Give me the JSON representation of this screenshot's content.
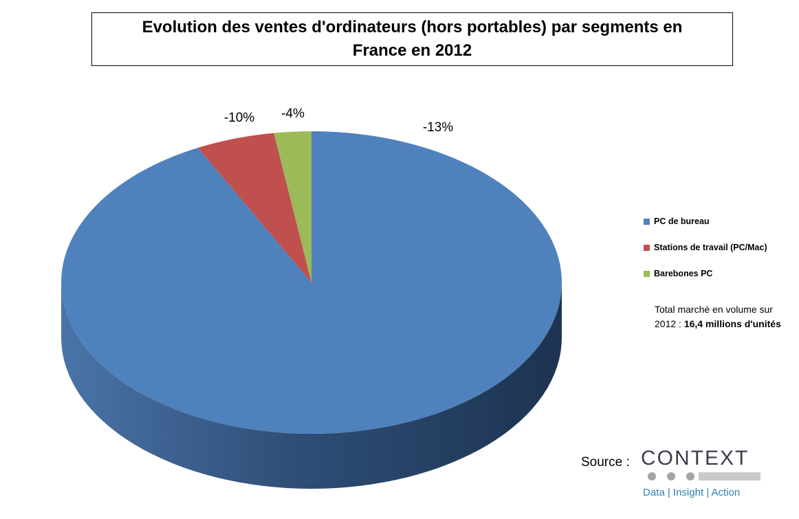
{
  "chart_data": {
    "type": "pie",
    "title": "Evolution des ventes d'ordinateurs (hors portables) par segments en France en 2012",
    "slices": [
      {
        "name": "PC de bureau",
        "share": 92.5,
        "label": "-13%",
        "color": "#4f81bd"
      },
      {
        "name": "Stations de travail (PC/Mac)",
        "share": 5.1,
        "label": "-10%",
        "color": "#c0504d"
      },
      {
        "name": "Barebones PC",
        "share": 2.4,
        "label": "-4%",
        "color": "#9bbb59"
      }
    ],
    "legend_position": "right",
    "three_d": true
  },
  "note": {
    "text": "Total marché en volume sur 2012 : ",
    "highlight": "16,4 millions d'unités"
  },
  "source": {
    "label": "Source :",
    "logo_word": "CONTEXT",
    "logo_tagline": "Data | Insight | Action"
  }
}
